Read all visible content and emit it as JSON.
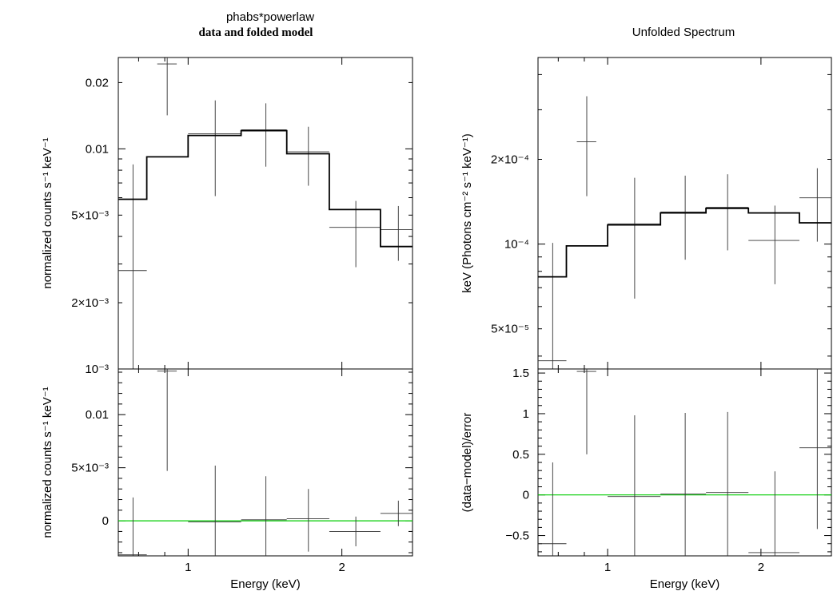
{
  "chart_data": [
    {
      "type": "line",
      "title": "phabs*powerlaw",
      "subtitle": "data and folded model",
      "ylabel": "normalized counts s⁻¹ keV⁻¹",
      "xscale": "log",
      "yscale": "log",
      "xlim": [
        0.73,
        2.75
      ],
      "ylim": [
        0.001,
        0.026
      ],
      "x_tick_labels": [
        "1",
        "2"
      ],
      "y_tick_labels": [
        "10⁻³",
        "2×10⁻³",
        "5×10⁻³",
        "0.01",
        "0.02"
      ],
      "series": [
        {
          "role": "data",
          "points": [
            {
              "x_low": 0.73,
              "x_high": 0.83,
              "x": 0.78,
              "y": 0.0028,
              "y_low": 0.001,
              "y_high": 0.0085
            },
            {
              "x_low": 0.87,
              "x_high": 0.95,
              "x": 0.91,
              "y": 0.0243,
              "y_low": 0.0142,
              "y_high": 0.026
            },
            {
              "x_low": 1.0,
              "x_high": 1.27,
              "x": 1.13,
              "y": 0.0117,
              "y_low": 0.0061,
              "y_high": 0.0166
            },
            {
              "x_low": 1.27,
              "x_high": 1.56,
              "x": 1.42,
              "y": 0.0122,
              "y_low": 0.0083,
              "y_high": 0.0161
            },
            {
              "x_low": 1.56,
              "x_high": 1.89,
              "x": 1.72,
              "y": 0.0097,
              "y_low": 0.0068,
              "y_high": 0.0126
            },
            {
              "x_low": 1.89,
              "x_high": 2.38,
              "x": 2.13,
              "y": 0.0044,
              "y_low": 0.0029,
              "y_high": 0.0058
            },
            {
              "x_low": 2.38,
              "x_high": 2.75,
              "x": 2.58,
              "y": 0.0043,
              "y_low": 0.0031,
              "y_high": 0.0055
            }
          ]
        },
        {
          "role": "model",
          "steps": [
            {
              "x_low": 0.73,
              "x_high": 0.83,
              "y": 0.0059
            },
            {
              "x_low": 0.83,
              "x_high": 1.0,
              "y": 0.0092
            },
            {
              "x_low": 1.0,
              "x_high": 1.27,
              "y": 0.0115
            },
            {
              "x_low": 1.27,
              "x_high": 1.56,
              "y": 0.0121
            },
            {
              "x_low": 1.56,
              "x_high": 1.89,
              "y": 0.0095
            },
            {
              "x_low": 1.89,
              "x_high": 2.38,
              "y": 0.0053
            },
            {
              "x_low": 2.38,
              "x_high": 2.75,
              "y": 0.0036
            }
          ]
        }
      ]
    },
    {
      "type": "line",
      "xlabel": "Energy (keV)",
      "ylabel": "normalized counts s⁻¹ keV⁻¹",
      "xscale": "log",
      "yscale": "linear",
      "xlim": [
        0.73,
        2.75
      ],
      "ylim": [
        -0.0033,
        0.0143
      ],
      "x_tick_labels": [
        "1",
        "2"
      ],
      "y_tick_labels": [
        "0",
        "5×10⁻³",
        "0.01"
      ],
      "reference_line": {
        "y": 0,
        "color": "#00cc00"
      },
      "series": [
        {
          "role": "residuals",
          "points": [
            {
              "x_low": 0.73,
              "x_high": 0.83,
              "x": 0.78,
              "y": -0.0032,
              "y_low": -0.0035,
              "y_high": 0.0022
            },
            {
              "x_low": 0.87,
              "x_high": 0.95,
              "x": 0.91,
              "y": 0.0141,
              "y_low": 0.0047,
              "y_high": 0.0143
            },
            {
              "x_low": 1.0,
              "x_high": 1.27,
              "x": 1.13,
              "y": -0.0001,
              "y_low": -0.0035,
              "y_high": 0.0052
            },
            {
              "x_low": 1.27,
              "x_high": 1.56,
              "x": 1.42,
              "y": 0.0001,
              "y_low": -0.0035,
              "y_high": 0.0042
            },
            {
              "x_low": 1.56,
              "x_high": 1.89,
              "x": 1.72,
              "y": 0.0002,
              "y_low": -0.0029,
              "y_high": 0.003
            },
            {
              "x_low": 1.89,
              "x_high": 2.38,
              "x": 2.13,
              "y": -0.001,
              "y_low": -0.0024,
              "y_high": 0.0004
            },
            {
              "x_low": 2.38,
              "x_high": 2.75,
              "x": 2.58,
              "y": 0.0007,
              "y_low": -0.0005,
              "y_high": 0.0019
            }
          ]
        }
      ]
    },
    {
      "type": "line",
      "title": "Unfolded Spectrum",
      "ylabel": "keV (Photons cm⁻² s⁻¹ keV⁻¹)",
      "xscale": "log",
      "yscale": "log",
      "xlim": [
        0.73,
        2.75
      ],
      "ylim": [
        3.6e-05,
        0.00046
      ],
      "x_tick_labels": [
        "1",
        "2"
      ],
      "y_tick_labels": [
        "5×10⁻⁵",
        "10⁻⁴",
        "2×10⁻⁴"
      ],
      "series": [
        {
          "role": "data",
          "points": [
            {
              "x_low": 0.73,
              "x_high": 0.83,
              "x": 0.78,
              "y": 3.85e-05,
              "y_low": 3.6e-05,
              "y_high": 0.000101
            },
            {
              "x_low": 0.87,
              "x_high": 0.95,
              "x": 0.91,
              "y": 0.000231,
              "y_low": 0.000148,
              "y_high": 0.000335
            },
            {
              "x_low": 1.0,
              "x_high": 1.27,
              "x": 1.13,
              "y": 0.000118,
              "y_low": 6.4e-05,
              "y_high": 0.000172
            },
            {
              "x_low": 1.27,
              "x_high": 1.56,
              "x": 1.42,
              "y": 0.00013,
              "y_low": 8.8e-05,
              "y_high": 0.000175
            },
            {
              "x_low": 1.56,
              "x_high": 1.89,
              "x": 1.72,
              "y": 0.000135,
              "y_low": 9.5e-05,
              "y_high": 0.000177
            },
            {
              "x_low": 1.89,
              "x_high": 2.38,
              "x": 2.13,
              "y": 0.000103,
              "y_low": 7.2e-05,
              "y_high": 0.000137
            },
            {
              "x_low": 2.38,
              "x_high": 2.75,
              "x": 2.58,
              "y": 0.000146,
              "y_low": 0.000102,
              "y_high": 0.000186
            }
          ]
        },
        {
          "role": "model",
          "steps": [
            {
              "x_low": 0.73,
              "x_high": 0.83,
              "y": 7.65e-05
            },
            {
              "x_low": 0.83,
              "x_high": 1.0,
              "y": 9.85e-05
            },
            {
              "x_low": 1.0,
              "x_high": 1.27,
              "y": 0.000117
            },
            {
              "x_low": 1.27,
              "x_high": 1.56,
              "x_note": "",
              "y": 0.000129
            },
            {
              "x_low": 1.56,
              "x_high": 1.89,
              "y": 0.000134
            },
            {
              "x_low": 1.89,
              "x_high": 2.38,
              "y": 0.000129
            },
            {
              "x_low": 2.38,
              "x_high": 2.75,
              "y": 0.000119
            }
          ]
        }
      ]
    },
    {
      "type": "line",
      "xlabel": "Energy (keV)",
      "ylabel": "(data−model)/error",
      "xscale": "log",
      "yscale": "linear",
      "xlim": [
        0.73,
        2.75
      ],
      "ylim": [
        -0.75,
        1.55
      ],
      "x_tick_labels": [
        "1",
        "2"
      ],
      "y_tick_labels": [
        "−0.5",
        "0",
        "0.5",
        "1",
        "1.5"
      ],
      "reference_line": {
        "y": 0,
        "color": "#00cc00"
      },
      "series": [
        {
          "role": "residuals",
          "points": [
            {
              "x_low": 0.73,
              "x_high": 0.83,
              "x": 0.78,
              "y": -0.6,
              "y_low": -0.75,
              "y_high": 0.4
            },
            {
              "x_low": 0.87,
              "x_high": 0.95,
              "x": 0.91,
              "y": 1.52,
              "y_low": 0.5,
              "y_high": 1.55
            },
            {
              "x_low": 1.0,
              "x_high": 1.27,
              "x": 1.13,
              "y": -0.02,
              "y_low": -0.75,
              "y_high": 0.98
            },
            {
              "x_low": 1.27,
              "x_high": 1.56,
              "x": 1.42,
              "y": 0.01,
              "y_low": -0.75,
              "y_high": 1.01
            },
            {
              "x_low": 1.56,
              "x_high": 1.89,
              "x": 1.72,
              "y": 0.03,
              "y_low": -0.75,
              "y_high": 1.02
            },
            {
              "x_low": 1.89,
              "x_high": 2.38,
              "x": 2.13,
              "y": -0.71,
              "y_low": -0.75,
              "y_high": 0.29
            },
            {
              "x_low": 2.38,
              "x_high": 2.75,
              "x": 2.58,
              "y": 0.58,
              "y_low": -0.42,
              "y_high": 1.55
            }
          ]
        }
      ]
    }
  ]
}
